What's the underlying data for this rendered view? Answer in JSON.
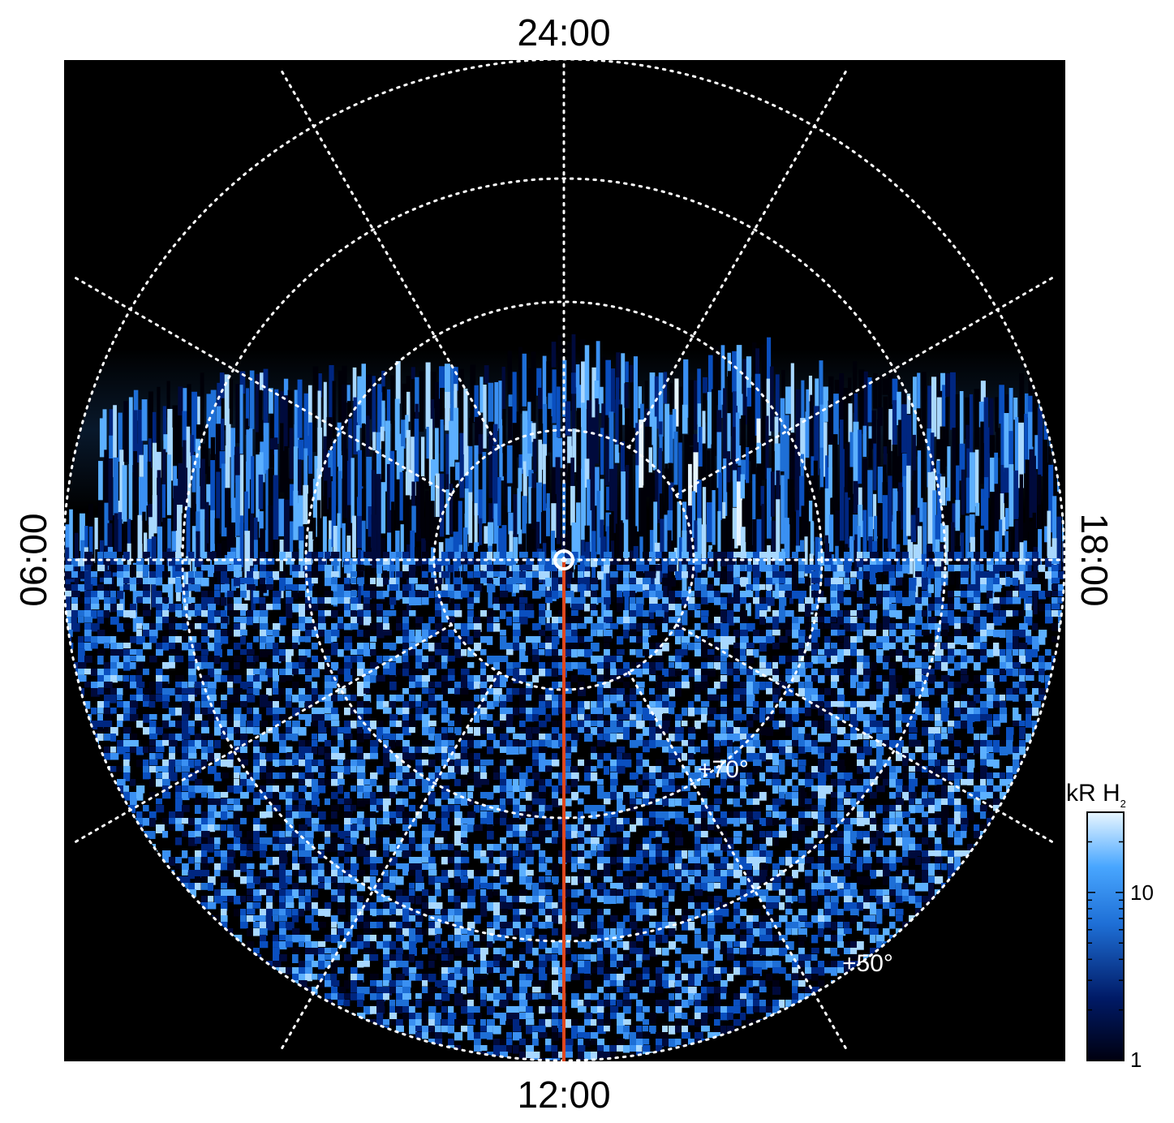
{
  "projection": {
    "top_label": "24:00",
    "bottom_label": "12:00",
    "left_label": "06:00",
    "right_label": "18:00",
    "lat_label_inner": "+70°",
    "lat_label_outer": "+50°"
  },
  "colorbar": {
    "title_main": "kR H",
    "title_sub": "2",
    "scale": "log",
    "range": [
      1,
      30
    ],
    "tick_labels": [
      "10",
      "1"
    ],
    "colors": [
      "#000010",
      "#001a66",
      "#1e6fd6",
      "#48a6ff",
      "#e8f6ff"
    ]
  },
  "overlay": {
    "grid_color": "#ffffff",
    "meridian_color": "#e0481e",
    "pole_marker": "circle-dot"
  }
}
